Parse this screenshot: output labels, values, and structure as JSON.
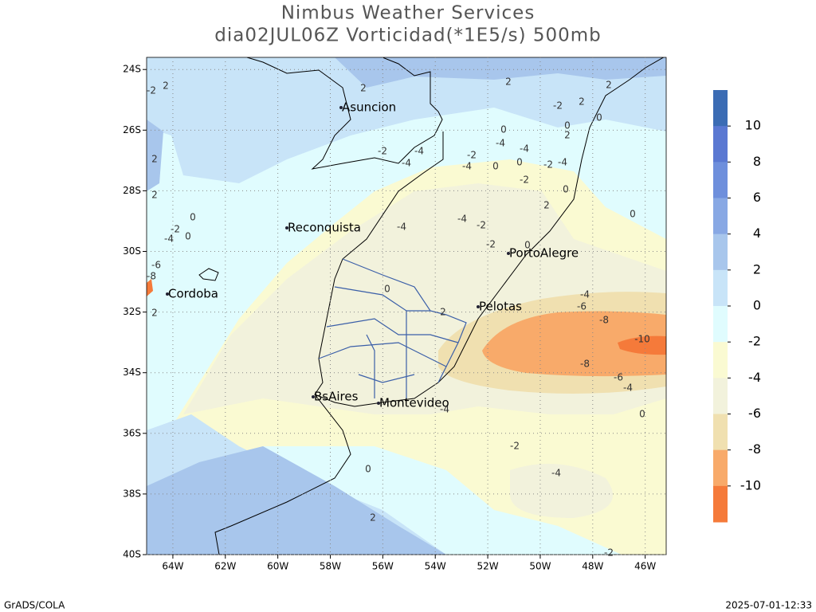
{
  "header": {
    "title": "Nimbus Weather Services",
    "subtitle": "dia02JUL06Z Vorticidad(*1E5/s) 500mb"
  },
  "map": {
    "xlim": [
      -65,
      -45.2
    ],
    "ylim": [
      -40,
      -23.6
    ],
    "grid": true,
    "xticks": [
      {
        "value": -64,
        "label": "64W"
      },
      {
        "value": -62,
        "label": "62W"
      },
      {
        "value": -60,
        "label": "60W"
      },
      {
        "value": -58,
        "label": "58W"
      },
      {
        "value": -56,
        "label": "56W"
      },
      {
        "value": -54,
        "label": "54W"
      },
      {
        "value": -52,
        "label": "52W"
      },
      {
        "value": -50,
        "label": "50W"
      },
      {
        "value": -48,
        "label": "48W"
      },
      {
        "value": -46,
        "label": "46W"
      }
    ],
    "yticks": [
      {
        "value": -24,
        "label": "24S"
      },
      {
        "value": -26,
        "label": "26S"
      },
      {
        "value": -28,
        "label": "28S"
      },
      {
        "value": -30,
        "label": "30S"
      },
      {
        "value": -32,
        "label": "32S"
      },
      {
        "value": -34,
        "label": "34S"
      },
      {
        "value": -36,
        "label": "36S"
      },
      {
        "value": -38,
        "label": "38S"
      },
      {
        "value": -40,
        "label": "40S"
      }
    ],
    "cities": [
      "Asuncion",
      "Reconquista",
      "PortoAlegre",
      "Cordoba",
      "Pelotas",
      "BsAires",
      "Montevideo"
    ],
    "contour_labels": [
      -2,
      2,
      2,
      2,
      0,
      -2,
      -4,
      0,
      -6,
      -8,
      2,
      2,
      2,
      2,
      -2,
      2,
      0,
      0,
      2,
      0,
      -4,
      -4,
      -2,
      -4,
      -4,
      -2,
      -4,
      0,
      0,
      -2,
      -4,
      -2,
      0,
      2,
      0,
      -4,
      -2,
      -4,
      -2,
      0,
      0,
      2,
      -4,
      -6,
      -8,
      -10,
      -8,
      -6,
      -4,
      0,
      -4,
      -2,
      0,
      -4,
      2,
      -2
    ]
  },
  "colorbar": {
    "levels": [
      10,
      8,
      6,
      4,
      2,
      0,
      -2,
      -4,
      -6,
      -8,
      -10
    ],
    "colors": [
      "#3b6cb4",
      "#5a78d2",
      "#6e8fdc",
      "#88a8e4",
      "#a8c6ec",
      "#c8e4f8",
      "#e0fcfe",
      "#fafad2",
      "#f2f2dc",
      "#f0e0b0",
      "#f8aa6a",
      "#f57a3a"
    ]
  },
  "footer": {
    "left": "GrADS/COLA",
    "right": "2025-07-01-12:33"
  }
}
